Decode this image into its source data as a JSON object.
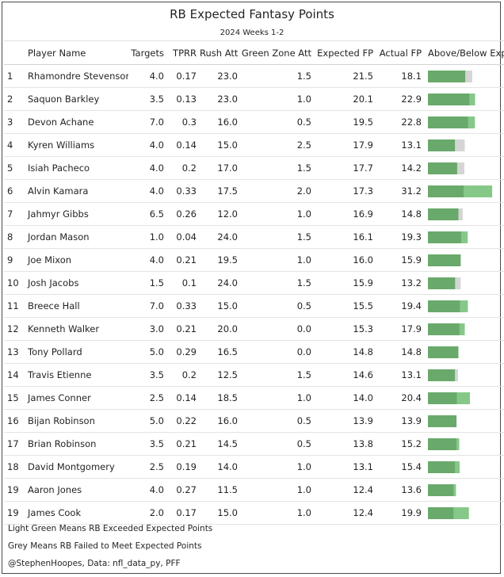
{
  "title": "RB Expected Fantasy Points",
  "subtitle": "2024 Weeks 1-2",
  "columns": {
    "rank": "",
    "player": "Player Name",
    "targets": "Targets",
    "tprr": "TPRR",
    "rush_att": "Rush Att",
    "green_zone_att": "Green Zone Att",
    "expected_fp": "Expected FP",
    "actual_fp": "Actual FP",
    "above_below": "Above/Below Expected"
  },
  "footer": {
    "line1": "Light Green Means RB Exceeded Expected Points",
    "line2": "Grey Means RB Failed to Meet Expected Points",
    "line3": "@StephenHoopes, Data: nfl_data_py, PFF"
  },
  "colors": {
    "expected_bar": "#69a96b",
    "exceeded": "#86c888",
    "failed": "#d5d5d5"
  },
  "chart_data": {
    "type": "table",
    "rows": [
      {
        "rank": "1",
        "player": "Rhamondre Stevenson",
        "targets": "4.0",
        "tprr": "0.17",
        "rush_att": "23.0",
        "green_zone_att": "1.5",
        "expected_fp": "21.5",
        "actual_fp": "18.1"
      },
      {
        "rank": "2",
        "player": "Saquon Barkley",
        "targets": "3.5",
        "tprr": "0.13",
        "rush_att": "23.0",
        "green_zone_att": "1.0",
        "expected_fp": "20.1",
        "actual_fp": "22.9"
      },
      {
        "rank": "3",
        "player": "Devon Achane",
        "targets": "7.0",
        "tprr": "0.3",
        "rush_att": "16.0",
        "green_zone_att": "0.5",
        "expected_fp": "19.5",
        "actual_fp": "22.8"
      },
      {
        "rank": "4",
        "player": "Kyren Williams",
        "targets": "4.0",
        "tprr": "0.14",
        "rush_att": "15.0",
        "green_zone_att": "2.5",
        "expected_fp": "17.9",
        "actual_fp": "13.1"
      },
      {
        "rank": "5",
        "player": "Isiah Pacheco",
        "targets": "4.0",
        "tprr": "0.2",
        "rush_att": "17.0",
        "green_zone_att": "1.5",
        "expected_fp": "17.7",
        "actual_fp": "14.2"
      },
      {
        "rank": "6",
        "player": "Alvin Kamara",
        "targets": "4.0",
        "tprr": "0.33",
        "rush_att": "17.5",
        "green_zone_att": "2.0",
        "expected_fp": "17.3",
        "actual_fp": "31.2"
      },
      {
        "rank": "7",
        "player": "Jahmyr Gibbs",
        "targets": "6.5",
        "tprr": "0.26",
        "rush_att": "12.0",
        "green_zone_att": "1.0",
        "expected_fp": "16.9",
        "actual_fp": "14.8"
      },
      {
        "rank": "8",
        "player": "Jordan Mason",
        "targets": "1.0",
        "tprr": "0.04",
        "rush_att": "24.0",
        "green_zone_att": "1.5",
        "expected_fp": "16.1",
        "actual_fp": "19.3"
      },
      {
        "rank": "9",
        "player": "Joe Mixon",
        "targets": "4.0",
        "tprr": "0.21",
        "rush_att": "19.5",
        "green_zone_att": "1.0",
        "expected_fp": "16.0",
        "actual_fp": "15.9"
      },
      {
        "rank": "10",
        "player": "Josh Jacobs",
        "targets": "1.5",
        "tprr": "0.1",
        "rush_att": "24.0",
        "green_zone_att": "1.5",
        "expected_fp": "15.9",
        "actual_fp": "13.2"
      },
      {
        "rank": "11",
        "player": "Breece Hall",
        "targets": "7.0",
        "tprr": "0.33",
        "rush_att": "15.0",
        "green_zone_att": "0.5",
        "expected_fp": "15.5",
        "actual_fp": "19.4"
      },
      {
        "rank": "12",
        "player": "Kenneth Walker",
        "targets": "3.0",
        "tprr": "0.21",
        "rush_att": "20.0",
        "green_zone_att": "0.0",
        "expected_fp": "15.3",
        "actual_fp": "17.9"
      },
      {
        "rank": "13",
        "player": "Tony Pollard",
        "targets": "5.0",
        "tprr": "0.29",
        "rush_att": "16.5",
        "green_zone_att": "0.0",
        "expected_fp": "14.8",
        "actual_fp": "14.8"
      },
      {
        "rank": "14",
        "player": "Travis Etienne",
        "targets": "3.5",
        "tprr": "0.2",
        "rush_att": "12.5",
        "green_zone_att": "1.5",
        "expected_fp": "14.6",
        "actual_fp": "13.1"
      },
      {
        "rank": "15",
        "player": "James Conner",
        "targets": "2.5",
        "tprr": "0.14",
        "rush_att": "18.5",
        "green_zone_att": "1.0",
        "expected_fp": "14.0",
        "actual_fp": "20.4"
      },
      {
        "rank": "16",
        "player": "Bijan Robinson",
        "targets": "5.0",
        "tprr": "0.22",
        "rush_att": "16.0",
        "green_zone_att": "0.5",
        "expected_fp": "13.9",
        "actual_fp": "13.9"
      },
      {
        "rank": "17",
        "player": "Brian Robinson",
        "targets": "3.5",
        "tprr": "0.21",
        "rush_att": "14.5",
        "green_zone_att": "0.5",
        "expected_fp": "13.8",
        "actual_fp": "15.2"
      },
      {
        "rank": "18",
        "player": "David Montgomery",
        "targets": "2.5",
        "tprr": "0.19",
        "rush_att": "14.0",
        "green_zone_att": "1.0",
        "expected_fp": "13.1",
        "actual_fp": "15.4"
      },
      {
        "rank": "19",
        "player": "Aaron Jones",
        "targets": "4.0",
        "tprr": "0.27",
        "rush_att": "11.5",
        "green_zone_att": "1.0",
        "expected_fp": "12.4",
        "actual_fp": "13.6"
      },
      {
        "rank": "19",
        "player": "James Cook",
        "targets": "2.0",
        "tprr": "0.17",
        "rush_att": "15.0",
        "green_zone_att": "1.0",
        "expected_fp": "12.4",
        "actual_fp": "19.9"
      }
    ]
  }
}
